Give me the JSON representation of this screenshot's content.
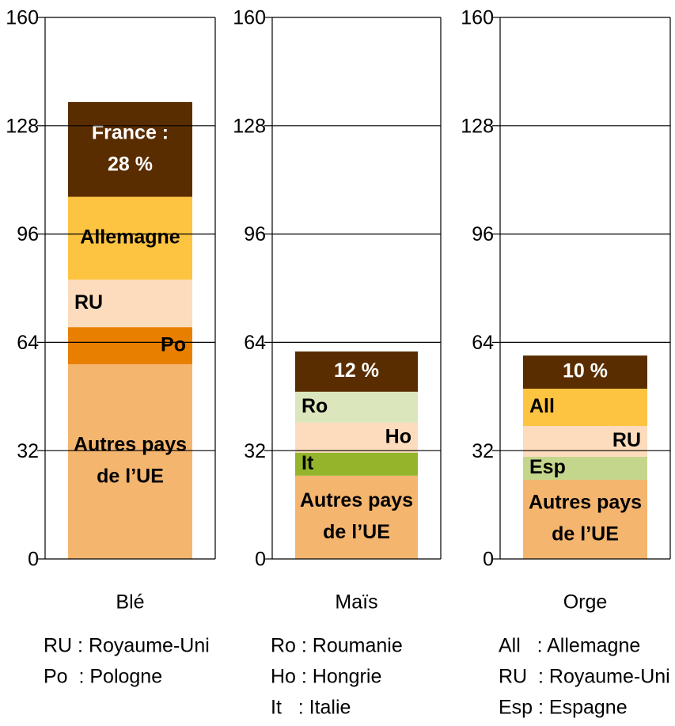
{
  "chart_data": [
    {
      "type": "stacked_bar",
      "categories": [
        "Blé"
      ],
      "ylim": [
        0,
        160
      ],
      "yticks": [
        0,
        32,
        64,
        96,
        128,
        160
      ],
      "grid": true,
      "segments": [
        {
          "label": [
            "Autres pays",
            "de l’UE"
          ],
          "value": 57.5,
          "color": "#f4b56f",
          "align": "center"
        },
        {
          "label": [
            "Po"
          ],
          "value": 11,
          "color": "#e97f00",
          "align": "right"
        },
        {
          "label": [
            "RU"
          ],
          "value": 14,
          "color": "#fcdcbc",
          "align": "left"
        },
        {
          "label": [
            "Allemagne"
          ],
          "value": 24.5,
          "color": "#fdc441",
          "align": "center"
        },
        {
          "label": [
            "France :",
            "28 %"
          ],
          "value": 28,
          "color": "#5a2d00",
          "align": "center"
        }
      ],
      "legend": [
        "RU : Royaume-Uni",
        "Po  : Pologne"
      ]
    },
    {
      "type": "stacked_bar",
      "categories": [
        "Maïs"
      ],
      "ylim": [
        0,
        160
      ],
      "yticks": [
        0,
        32,
        64,
        96,
        128,
        160
      ],
      "grid": true,
      "segments": [
        {
          "label": [
            "Autres pays",
            "de l’UE"
          ],
          "value": 24.6,
          "color": "#f4b56f",
          "align": "center"
        },
        {
          "label": [
            "It"
          ],
          "value": 6.8,
          "color": "#94b52b",
          "align": "left"
        },
        {
          "label": [
            "Ho"
          ],
          "value": 8.9,
          "color": "#fcdcbc",
          "align": "right"
        },
        {
          "label": [
            "Ro"
          ],
          "value": 9.1,
          "color": "#dce6bc",
          "align": "left"
        },
        {
          "label": [
            "12 %"
          ],
          "value": 11.9,
          "color": "#5a2d00",
          "align": "center"
        }
      ],
      "legend": [
        "Ro : Roumanie",
        "Ho : Hongrie",
        "It   : Italie"
      ]
    },
    {
      "type": "stacked_bar",
      "categories": [
        "Orge"
      ],
      "ylim": [
        0,
        160
      ],
      "yticks": [
        0,
        32,
        64,
        96,
        128,
        160
      ],
      "grid": true,
      "segments": [
        {
          "label": [
            "Autres pays",
            "de l’UE"
          ],
          "value": 23.4,
          "color": "#f4b56f",
          "align": "center"
        },
        {
          "label": [
            "Esp"
          ],
          "value": 6.8,
          "color": "#c4d68c",
          "align": "left"
        },
        {
          "label": [
            "RU"
          ],
          "value": 9.1,
          "color": "#fcdcbc",
          "align": "right"
        },
        {
          "label": [
            "All"
          ],
          "value": 11,
          "color": "#fdc441",
          "align": "left"
        },
        {
          "label": [
            "10 %"
          ],
          "value": 9.8,
          "color": "#5a2d00",
          "align": "center"
        }
      ],
      "legend": [
        "All   : Allemagne",
        "RU  : Royaume-Uni",
        "Esp : Espagne"
      ]
    }
  ]
}
